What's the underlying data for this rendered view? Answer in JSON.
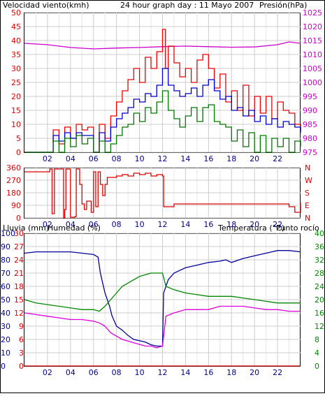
{
  "colors": {
    "wind_avg": "#0000cc",
    "wind_gust": "#ee0000",
    "wind_min": "#007700",
    "pressure": "#cc00cc",
    "direction": "#dd0000",
    "rain": "#dd0000",
    "humidity": "#000099",
    "temperature": "#008800",
    "dewpoint": "#dd00dd",
    "grid": "#cccccc",
    "frame": "#000000"
  },
  "header": {
    "wind_label": "Velocidad viento(kmh)",
    "title": "24 hour graph day : 11 Mayo 2007",
    "pressure_label": "Presión(hPa)"
  },
  "labels": {
    "rain": "Lluvia (mm)",
    "humidity": "Humedad (%)",
    "temperature": "Temperatura (°C)",
    "dewpoint": "Punto rocío"
  },
  "chart_data": [
    {
      "type": "line",
      "panel": "wind_pressure",
      "x_ticks": [
        "02",
        "04",
        "06",
        "08",
        "10",
        "12",
        "14",
        "16",
        "18",
        "20",
        "22"
      ],
      "y_left": {
        "label": "Velocidad viento(kmh)",
        "range": [
          0,
          50
        ],
        "ticks": [
          0,
          5,
          10,
          15,
          20,
          25,
          30,
          35,
          40,
          45,
          50
        ]
      },
      "y_right": {
        "label": "Presión(hPa)",
        "range": [
          975,
          1025
        ],
        "ticks": [
          975,
          980,
          985,
          990,
          995,
          1000,
          1005,
          1010,
          1015,
          1020,
          1025
        ]
      },
      "x_range_hours": [
        0,
        24
      ],
      "series": [
        {
          "key": "pressure",
          "axis": "right",
          "x": [
            0,
            2,
            4,
            6,
            8,
            10,
            12,
            14,
            16,
            18,
            20,
            22,
            23,
            24
          ],
          "y": [
            1014,
            1013.5,
            1012.5,
            1012,
            1012.3,
            1012.5,
            1012.8,
            1013,
            1012.8,
            1012.6,
            1012.7,
            1013.5,
            1014.5,
            1014
          ]
        },
        {
          "key": "wind_gust",
          "axis": "left",
          "x": [
            0,
            1,
            2,
            2.5,
            3,
            3.5,
            4,
            4.5,
            5,
            5.5,
            6,
            6.5,
            7,
            7.5,
            8,
            8.5,
            9,
            9.5,
            10,
            10.5,
            11,
            11.5,
            12,
            12.25,
            12.5,
            13,
            13.5,
            14,
            14.5,
            15,
            15.5,
            16,
            16.5,
            17,
            17.5,
            18,
            18.5,
            19,
            19.5,
            20,
            20.5,
            21,
            21.5,
            22,
            22.5,
            23,
            23.5,
            24
          ],
          "y": [
            0,
            0,
            0,
            8,
            3,
            9,
            5,
            10,
            8,
            9,
            0,
            10,
            5,
            13,
            18,
            22,
            26,
            30,
            25,
            34,
            30,
            36,
            44,
            30,
            38,
            32,
            27,
            30,
            25,
            33,
            35,
            30,
            23,
            28,
            18,
            22,
            15,
            24,
            13,
            20,
            14,
            20,
            12,
            18,
            15,
            14,
            10,
            8
          ]
        },
        {
          "key": "wind_avg",
          "axis": "left",
          "x": [
            0,
            1,
            2,
            2.5,
            3,
            3.5,
            4,
            4.5,
            5,
            5.5,
            6,
            6.5,
            7,
            7.5,
            8,
            8.5,
            9,
            9.5,
            10,
            10.5,
            11,
            11.5,
            12,
            12.5,
            13,
            13.5,
            14,
            14.5,
            15,
            15.5,
            16,
            16.5,
            17,
            17.5,
            18,
            18.5,
            19,
            19.5,
            20,
            20.5,
            21,
            21.5,
            22,
            22.5,
            23,
            23.5,
            24
          ],
          "y": [
            0,
            0,
            0,
            6,
            4,
            7,
            5,
            7,
            6,
            6,
            0,
            7,
            4,
            9,
            12,
            14,
            16,
            19,
            18,
            21,
            20,
            24,
            30,
            24,
            22,
            20,
            21,
            23,
            20,
            24,
            26,
            22,
            19,
            20,
            15,
            16,
            13,
            15,
            11,
            13,
            10,
            12,
            9,
            11,
            10,
            9,
            7
          ]
        },
        {
          "key": "wind_min",
          "axis": "left",
          "x": [
            0,
            1,
            2,
            2.5,
            3,
            3.5,
            4,
            4.5,
            5,
            5.5,
            6,
            6.5,
            7,
            7.5,
            8,
            8.5,
            9,
            9.5,
            10,
            10.5,
            11,
            11.5,
            12,
            12.5,
            13,
            13.5,
            14,
            14.5,
            15,
            15.5,
            16,
            16.5,
            17,
            17.5,
            18,
            18.5,
            19,
            19.5,
            20,
            20.5,
            21,
            21.5,
            22,
            22.5,
            23,
            23.5,
            24
          ],
          "y": [
            0,
            0,
            0,
            4,
            0,
            5,
            2,
            6,
            3,
            5,
            0,
            4,
            0,
            3,
            6,
            9,
            10,
            14,
            11,
            16,
            14,
            18,
            22,
            15,
            12,
            9,
            13,
            16,
            11,
            16,
            17,
            11,
            10,
            9,
            4,
            8,
            2,
            7,
            0,
            6,
            0,
            5,
            2,
            5,
            0,
            4,
            2
          ]
        }
      ]
    },
    {
      "type": "line",
      "panel": "wind_direction",
      "x_ticks": [
        "02",
        "04",
        "06",
        "08",
        "10",
        "12",
        "14",
        "16",
        "18",
        "20",
        "22"
      ],
      "y_left": {
        "range": [
          0,
          360
        ],
        "ticks": [
          0,
          90,
          180,
          270,
          360
        ]
      },
      "y_right": {
        "ticks": [
          "N",
          "E",
          "S",
          "W",
          "N"
        ]
      },
      "x_range_hours": [
        0,
        24
      ],
      "series": [
        {
          "key": "direction",
          "x": [
            0,
            1,
            2,
            2.2,
            2.4,
            2.6,
            2.8,
            3.2,
            3.4,
            3.5,
            3.6,
            4,
            4.4,
            4.5,
            4.8,
            5,
            5.2,
            5.4,
            5.8,
            6,
            6.2,
            6.4,
            6.6,
            6.8,
            7,
            7.2,
            7.6,
            8,
            8.5,
            9,
            9.5,
            10,
            10.5,
            11,
            11.5,
            12,
            12.1,
            13,
            14,
            16,
            18,
            20,
            22,
            22.6,
            23,
            23.5,
            24
          ],
          "y": [
            330,
            330,
            330,
            350,
            30,
            350,
            350,
            350,
            0,
            60,
            350,
            5,
            10,
            350,
            240,
            100,
            60,
            120,
            40,
            330,
            80,
            330,
            240,
            160,
            240,
            290,
            290,
            300,
            310,
            300,
            320,
            310,
            320,
            300,
            310,
            300,
            80,
            100,
            100,
            100,
            100,
            100,
            100,
            100,
            80,
            40,
            110
          ]
        }
      ]
    },
    {
      "type": "line",
      "panel": "humidity_temperature",
      "x_ticks": [
        "02",
        "04",
        "06",
        "08",
        "10",
        "12",
        "14",
        "16",
        "18",
        "20",
        "22"
      ],
      "y_left_outer": {
        "label": "Lluvia (mm)",
        "ticks": [
          0,
          3,
          6,
          9,
          12,
          15,
          18,
          21,
          24,
          27,
          30
        ]
      },
      "y_left_inner": {
        "label": "Humedad (%)",
        "range": [
          0,
          100
        ],
        "ticks": [
          0,
          10,
          20,
          30,
          40,
          50,
          60,
          70,
          80,
          90,
          100
        ]
      },
      "y_right": {
        "label": "Temperatura (°C)",
        "range": [
          0,
          40
        ],
        "ticks": [
          0,
          4,
          8,
          12,
          16,
          20,
          24,
          28,
          32,
          36,
          40
        ]
      },
      "x_range_hours": [
        0,
        24
      ],
      "series": [
        {
          "key": "rain",
          "axis": "left_outer",
          "x": [
            0,
            24
          ],
          "y": [
            0,
            0
          ]
        },
        {
          "key": "humidity",
          "axis": "left_inner",
          "x": [
            0,
            1,
            2,
            3,
            4,
            5,
            6,
            6.4,
            6.6,
            7,
            7.4,
            7.6,
            8,
            8.5,
            9,
            9.5,
            10,
            10.5,
            11,
            11.5,
            12,
            12.1,
            12.5,
            13,
            14,
            15,
            16,
            17,
            17.5,
            18,
            19,
            20,
            21,
            21.5,
            22,
            23,
            24
          ],
          "y": [
            85,
            86,
            86,
            86,
            86,
            85,
            84,
            82,
            70,
            55,
            45,
            38,
            30,
            27,
            23,
            20,
            19,
            18,
            16,
            15,
            15,
            55,
            65,
            70,
            74,
            76,
            78,
            79,
            80,
            78,
            81,
            83,
            85,
            86,
            87,
            87,
            86
          ]
        },
        {
          "key": "temperature",
          "axis": "right",
          "x": [
            0,
            1,
            2,
            3,
            4,
            5,
            6,
            6.5,
            7,
            7.5,
            8,
            8.5,
            9,
            9.5,
            10,
            10.5,
            11,
            11.5,
            12,
            12.3,
            13,
            14,
            15,
            16,
            17,
            18,
            19,
            20,
            21,
            22,
            23,
            24
          ],
          "y": [
            20,
            19,
            18.5,
            18,
            17.5,
            17,
            17,
            16.5,
            18,
            20,
            22,
            24,
            25,
            26,
            27,
            27.5,
            28,
            28,
            28,
            24,
            23,
            22,
            21.5,
            21,
            21,
            21,
            20.5,
            20,
            19.5,
            19,
            19,
            19
          ]
        },
        {
          "key": "dewpoint",
          "axis": "right",
          "x": [
            0,
            1,
            2,
            3,
            4,
            5,
            6,
            6.5,
            7,
            7.5,
            8,
            8.5,
            9,
            9.5,
            10,
            10.5,
            11,
            11.5,
            12,
            12.3,
            13,
            14,
            15,
            16,
            17,
            18,
            19,
            20,
            21,
            22,
            23,
            24
          ],
          "y": [
            16,
            15.5,
            15,
            14.5,
            14,
            14,
            13.5,
            13,
            12,
            10,
            9,
            8,
            7.5,
            7,
            6.5,
            6,
            6,
            5.5,
            6,
            15,
            16,
            17,
            17,
            17,
            18,
            18,
            18,
            17.5,
            17,
            17,
            16.5,
            16.5
          ]
        }
      ]
    }
  ]
}
